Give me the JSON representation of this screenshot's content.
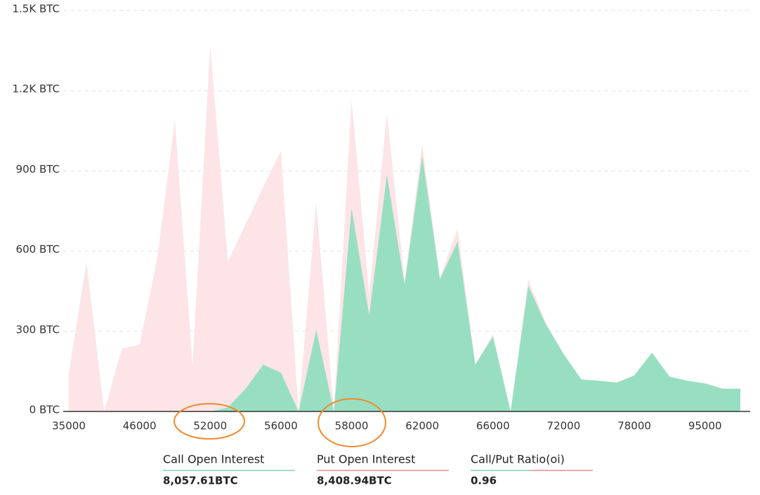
{
  "chart_data": {
    "type": "area",
    "categories": [
      "35000",
      null,
      null,
      null,
      "46000",
      null,
      null,
      null,
      "52000",
      null,
      null,
      null,
      "56000",
      null,
      null,
      null,
      "58000",
      null,
      null,
      null,
      "62000",
      null,
      null,
      null,
      "66000",
      null,
      null,
      null,
      "72000",
      null,
      null,
      null,
      "78000",
      null,
      null,
      null,
      "95000",
      null,
      null
    ],
    "series": [
      {
        "name": "Put Open Interest",
        "color": "#fde4e6",
        "values": [
          140,
          560,
          0,
          235,
          250,
          570,
          1090,
          170,
          1370,
          560,
          700,
          840,
          975,
          0,
          780,
          0,
          1165,
          435,
          1115,
          490,
          1000,
          500,
          685,
          175,
          290,
          0,
          495,
          330,
          215,
          120,
          115,
          108,
          135,
          220,
          130,
          115,
          105,
          85,
          85
        ]
      },
      {
        "name": "Call Open Interest",
        "color": "#98dfc2",
        "values": [
          0,
          0,
          0,
          0,
          0,
          0,
          0,
          0,
          0,
          15,
          85,
          175,
          145,
          0,
          305,
          0,
          760,
          360,
          885,
          475,
          955,
          495,
          635,
          175,
          280,
          0,
          470,
          325,
          215,
          120,
          115,
          108,
          135,
          220,
          130,
          115,
          105,
          85,
          85
        ]
      }
    ],
    "ylim": [
      0,
      1500
    ],
    "yticks": [
      {
        "value": 0,
        "label": "0 BTC"
      },
      {
        "value": 300,
        "label": "300 BTC"
      },
      {
        "value": 600,
        "label": "600 BTC"
      },
      {
        "value": 900,
        "label": "900 BTC"
      },
      {
        "value": 1200,
        "label": "1.2K BTC"
      },
      {
        "value": 1500,
        "label": "1.5K BTC"
      }
    ],
    "grid": true
  },
  "summary": [
    {
      "label": "Call Open Interest",
      "value": "8,057.61BTC"
    },
    {
      "label": "Put Open Interest",
      "value": "8,408.94BTC"
    },
    {
      "label": "Call/Put Ratio(oi)",
      "value": "0.96"
    }
  ]
}
